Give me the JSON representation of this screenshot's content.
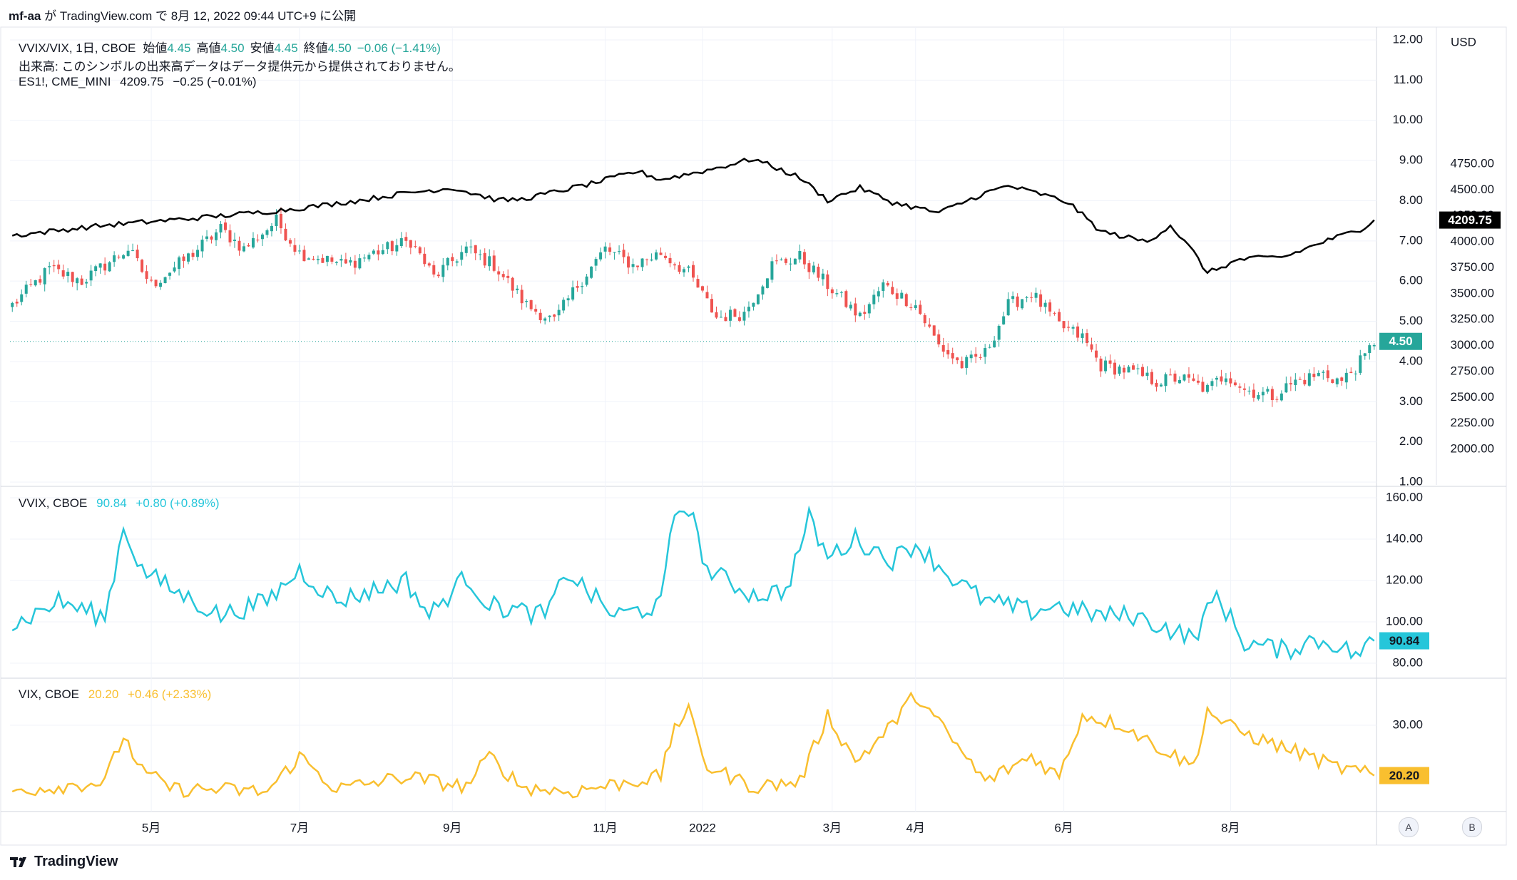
{
  "header": {
    "author": "mf-aa",
    "ga": "が",
    "site": "TradingView.com",
    "de": "で",
    "timestamp": "8月 12, 2022 09:44 UTC+9",
    "suffix": "に公開"
  },
  "legend_main": {
    "symbol": "VVIX/VIX, 1日, CBOE",
    "open_label": "始値",
    "open": "4.45",
    "high_label": "高値",
    "high": "4.50",
    "low_label": "安値",
    "low": "4.45",
    "close_label": "終値",
    "close": "4.50",
    "change": "−0.06 (−1.41%)"
  },
  "legend_volume": "出来高: このシンボルの出来高データはデータ提供元から提供されておりません。",
  "legend_es": {
    "symbol": "ES1!, CME_MINI",
    "value": "4209.75",
    "change": "−0.25 (−0.01%)"
  },
  "legend_vvix": {
    "symbol": "VVIX, CBOE",
    "value": "90.84",
    "change": "+0.80 (+0.89%)"
  },
  "legend_vix": {
    "symbol": "VIX, CBOE",
    "value": "20.20",
    "change": "+0.46 (+2.33%)"
  },
  "colors": {
    "up": "#26a69a",
    "down": "#ef5350",
    "es": "#000000",
    "vvix": "#26c6da",
    "vix": "#f9bf2f"
  },
  "axis_buttons": {
    "a": "A",
    "b": "B"
  },
  "logo": "TradingView",
  "chart_data": [
    {
      "type": "candlestick",
      "name": "VVIX/VIX, 1日, CBOE",
      "x_labels": [
        "5月",
        "7月",
        "9月",
        "11月",
        "2022",
        "3月",
        "4月",
        "6月",
        "8月"
      ],
      "y_ticks": [
        "12.00",
        "11.00",
        "10.00",
        "9.00",
        "8.00",
        "7.00",
        "6.00",
        "5.00",
        "4.00",
        "3.00",
        "2.00",
        "1.00"
      ],
      "ylim": [
        1,
        12
      ],
      "last_value": "4.50",
      "anchor_closes": [
        [
          0,
          5.4
        ],
        [
          8,
          6.3
        ],
        [
          15,
          6.0
        ],
        [
          25,
          6.8
        ],
        [
          30,
          5.9
        ],
        [
          38,
          6.6
        ],
        [
          45,
          7.3
        ],
        [
          50,
          6.8
        ],
        [
          57,
          7.5
        ],
        [
          62,
          6.7
        ],
        [
          72,
          6.4
        ],
        [
          78,
          6.7
        ],
        [
          86,
          7.0
        ],
        [
          91,
          6.1
        ],
        [
          98,
          6.8
        ],
        [
          104,
          6.4
        ],
        [
          111,
          5.4
        ],
        [
          117,
          5.0
        ],
        [
          122,
          5.9
        ],
        [
          128,
          6.8
        ],
        [
          134,
          6.4
        ],
        [
          140,
          6.7
        ],
        [
          146,
          6.2
        ],
        [
          152,
          5.1
        ],
        [
          158,
          5.2
        ],
        [
          164,
          6.4
        ],
        [
          170,
          6.6
        ],
        [
          176,
          5.9
        ],
        [
          183,
          5.1
        ],
        [
          188,
          5.9
        ],
        [
          195,
          5.4
        ],
        [
          200,
          4.4
        ],
        [
          205,
          3.9
        ],
        [
          210,
          4.2
        ],
        [
          215,
          5.4
        ],
        [
          220,
          5.7
        ],
        [
          226,
          4.9
        ],
        [
          231,
          4.6
        ],
        [
          235,
          3.9
        ],
        [
          240,
          3.8
        ],
        [
          247,
          3.5
        ],
        [
          252,
          3.6
        ],
        [
          258,
          3.3
        ],
        [
          262,
          3.7
        ],
        [
          266,
          3.3
        ],
        [
          272,
          3.15
        ],
        [
          277,
          3.5
        ],
        [
          283,
          3.7
        ],
        [
          287,
          3.5
        ],
        [
          292,
          4.1
        ],
        [
          294,
          4.5
        ]
      ]
    },
    {
      "type": "line",
      "name": "ES1!, CME_MINI",
      "y_ticks": [
        "4750.00",
        "4500.00",
        "4250.00",
        "4000.00",
        "3750.00",
        "3500.00",
        "3250.00",
        "3000.00",
        "2750.00",
        "2500.00",
        "2250.00",
        "2000.00"
      ],
      "y_unit": "USD",
      "last_value": "4209.75",
      "anchors": [
        [
          0,
          4060
        ],
        [
          20,
          4160
        ],
        [
          40,
          4230
        ],
        [
          55,
          4290
        ],
        [
          65,
          4340
        ],
        [
          75,
          4400
        ],
        [
          85,
          4470
        ],
        [
          95,
          4520
        ],
        [
          105,
          4400
        ],
        [
          110,
          4410
        ],
        [
          125,
          4560
        ],
        [
          135,
          4680
        ],
        [
          140,
          4600
        ],
        [
          150,
          4690
        ],
        [
          160,
          4800
        ],
        [
          170,
          4620
        ],
        [
          176,
          4400
        ],
        [
          183,
          4520
        ],
        [
          190,
          4380
        ],
        [
          200,
          4280
        ],
        [
          210,
          4470
        ],
        [
          215,
          4540
        ],
        [
          222,
          4460
        ],
        [
          228,
          4380
        ],
        [
          235,
          4100
        ],
        [
          245,
          4000
        ],
        [
          250,
          4160
        ],
        [
          255,
          3900
        ],
        [
          258,
          3700
        ],
        [
          265,
          3830
        ],
        [
          275,
          3860
        ],
        [
          283,
          4000
        ],
        [
          287,
          4060
        ],
        [
          291,
          4120
        ],
        [
          294,
          4209.75
        ]
      ]
    },
    {
      "type": "line",
      "name": "VVIX, CBOE",
      "y_ticks": [
        "160.00",
        "140.00",
        "120.00",
        "100.00",
        "80.00"
      ],
      "ylim": [
        76,
        162
      ],
      "last_value": "90.84",
      "anchors": [
        [
          0,
          98
        ],
        [
          10,
          110
        ],
        [
          20,
          102
        ],
        [
          24,
          146
        ],
        [
          28,
          125
        ],
        [
          35,
          115
        ],
        [
          45,
          103
        ],
        [
          55,
          110
        ],
        [
          62,
          125
        ],
        [
          70,
          110
        ],
        [
          85,
          120
        ],
        [
          90,
          103
        ],
        [
          98,
          122
        ],
        [
          103,
          108
        ],
        [
          115,
          103
        ],
        [
          120,
          124
        ],
        [
          125,
          113
        ],
        [
          130,
          103
        ],
        [
          140,
          108
        ],
        [
          143,
          153
        ],
        [
          146,
          156
        ],
        [
          150,
          125
        ],
        [
          160,
          113
        ],
        [
          167,
          115
        ],
        [
          172,
          150
        ],
        [
          176,
          131
        ],
        [
          182,
          140
        ],
        [
          190,
          130
        ],
        [
          195,
          138
        ],
        [
          203,
          121
        ],
        [
          210,
          110
        ],
        [
          220,
          105
        ],
        [
          225,
          108
        ],
        [
          235,
          103
        ],
        [
          242,
          103
        ],
        [
          248,
          98
        ],
        [
          255,
          92
        ],
        [
          260,
          113
        ],
        [
          266,
          90
        ],
        [
          275,
          86
        ],
        [
          280,
          91
        ],
        [
          285,
          90
        ],
        [
          290,
          84
        ],
        [
          294,
          90.84
        ]
      ]
    },
    {
      "type": "line",
      "name": "VIX, CBOE",
      "y_ticks": [
        "30.00"
      ],
      "ylim": [
        15,
        38
      ],
      "last_value": "20.20",
      "anchors": [
        [
          0,
          17.2
        ],
        [
          20,
          19
        ],
        [
          24,
          28
        ],
        [
          28,
          21
        ],
        [
          35,
          17.5
        ],
        [
          45,
          17.5
        ],
        [
          55,
          17
        ],
        [
          62,
          24
        ],
        [
          70,
          17.5
        ],
        [
          85,
          20
        ],
        [
          98,
          18
        ],
        [
          103,
          24
        ],
        [
          110,
          18
        ],
        [
          120,
          17
        ],
        [
          130,
          18.5
        ],
        [
          140,
          20
        ],
        [
          143,
          30
        ],
        [
          146,
          32.5
        ],
        [
          150,
          22
        ],
        [
          160,
          18
        ],
        [
          170,
          19
        ],
        [
          176,
          32
        ],
        [
          182,
          23
        ],
        [
          188,
          28
        ],
        [
          195,
          36
        ],
        [
          203,
          27
        ],
        [
          210,
          19
        ],
        [
          220,
          24
        ],
        [
          226,
          20
        ],
        [
          231,
          32
        ],
        [
          240,
          30
        ],
        [
          245,
          27
        ],
        [
          255,
          22
        ],
        [
          258,
          33
        ],
        [
          262,
          30
        ],
        [
          270,
          27
        ],
        [
          280,
          24
        ],
        [
          285,
          22
        ],
        [
          290,
          21
        ],
        [
          294,
          20.2
        ]
      ]
    }
  ]
}
